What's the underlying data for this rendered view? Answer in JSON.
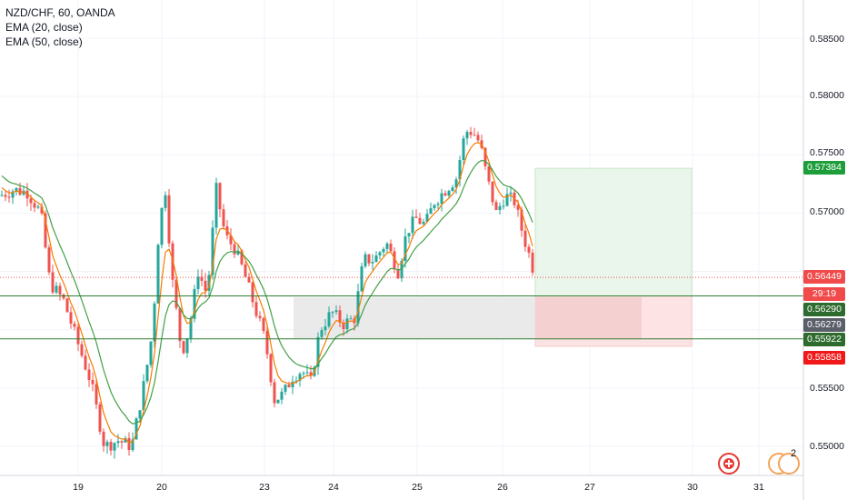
{
  "legend": {
    "symbol_line": "NZD/CHF, 60, OANDA",
    "ema20_label": "EMA (20, close)",
    "ema50_label": "EMA (50, close)"
  },
  "price_axis": {
    "ticks": [
      "0.58500",
      "0.58000",
      "0.57500",
      "0.57000",
      "0.56500",
      "0.56000",
      "0.55500",
      "0.55000"
    ],
    "last_price": "0.56449",
    "countdown": "29:19",
    "target": "0.57384",
    "entry": "0.56290",
    "level_gray": "0.56279",
    "level_mid": "0.55922",
    "stop": "0.55858"
  },
  "time_axis": {
    "ticks": [
      "19",
      "20",
      "23",
      "24",
      "25",
      "26",
      "27",
      "30",
      "31"
    ]
  },
  "bottom_icons": {
    "badge_count": "2"
  },
  "colors": {
    "up": "#26a69a",
    "down": "#ef5350",
    "ema20": "#f57c00",
    "ema50": "#43a047",
    "target": "#1e9e3a",
    "stop": "#f01818",
    "entry_line": "#2e7d32"
  },
  "chart_data": {
    "type": "candlestick",
    "symbol": "NZD/CHF",
    "interval": "60",
    "source": "OANDA",
    "ylim": [
      0.5485,
      0.5885
    ],
    "x": [
      "19",
      "20",
      "23",
      "24",
      "25",
      "26",
      "27",
      "30",
      "31"
    ],
    "series": [
      {
        "name": "EMA (20, close)"
      },
      {
        "name": "EMA (50, close)"
      }
    ],
    "annotations": {
      "last_price": 0.56449,
      "long_position": {
        "entry": 0.5629,
        "target": 0.57384,
        "stop": 0.55858
      },
      "horizontal_lines": [
        0.5629,
        0.55922
      ],
      "shaded_zone": [
        0.55922,
        0.56279
      ]
    }
  }
}
